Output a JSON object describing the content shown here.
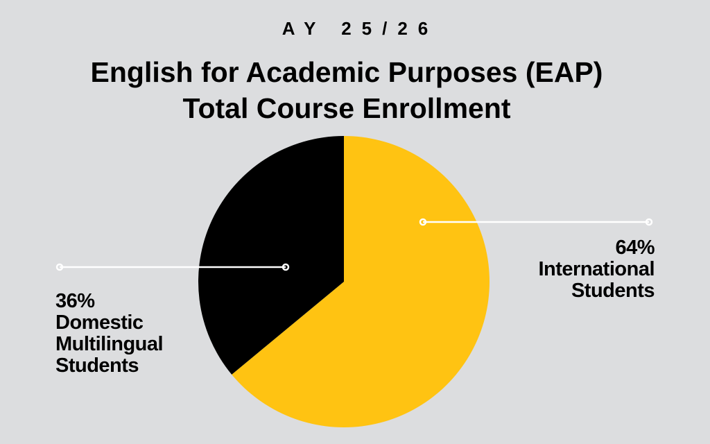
{
  "header": {
    "subtitle": "AY 25/26",
    "title_line1": "English for Academic Purposes (EAP)",
    "title_line2": "Total Course Enrollment"
  },
  "colors": {
    "background": "#dcdddf",
    "international": "#ffc312",
    "domestic": "#000000",
    "leader_line": "#ffffff"
  },
  "labels": {
    "domestic": {
      "percent": "36%",
      "line1": "Domestic",
      "line2": "Multilingual",
      "line3": "Students"
    },
    "international": {
      "percent": "64%",
      "line1": "International",
      "line2": "Students"
    }
  },
  "chart_data": {
    "type": "pie",
    "title": "English for Academic Purposes (EAP) Total Course Enrollment",
    "subtitle": "AY 25/26",
    "categories": [
      "International Students",
      "Domestic Multilingual Students"
    ],
    "values": [
      64,
      36
    ],
    "unit": "%",
    "colors": [
      "#ffc312",
      "#000000"
    ],
    "start_angle": "12 o'clock, clockwise",
    "legend": "none (direct labels with leader lines)"
  }
}
